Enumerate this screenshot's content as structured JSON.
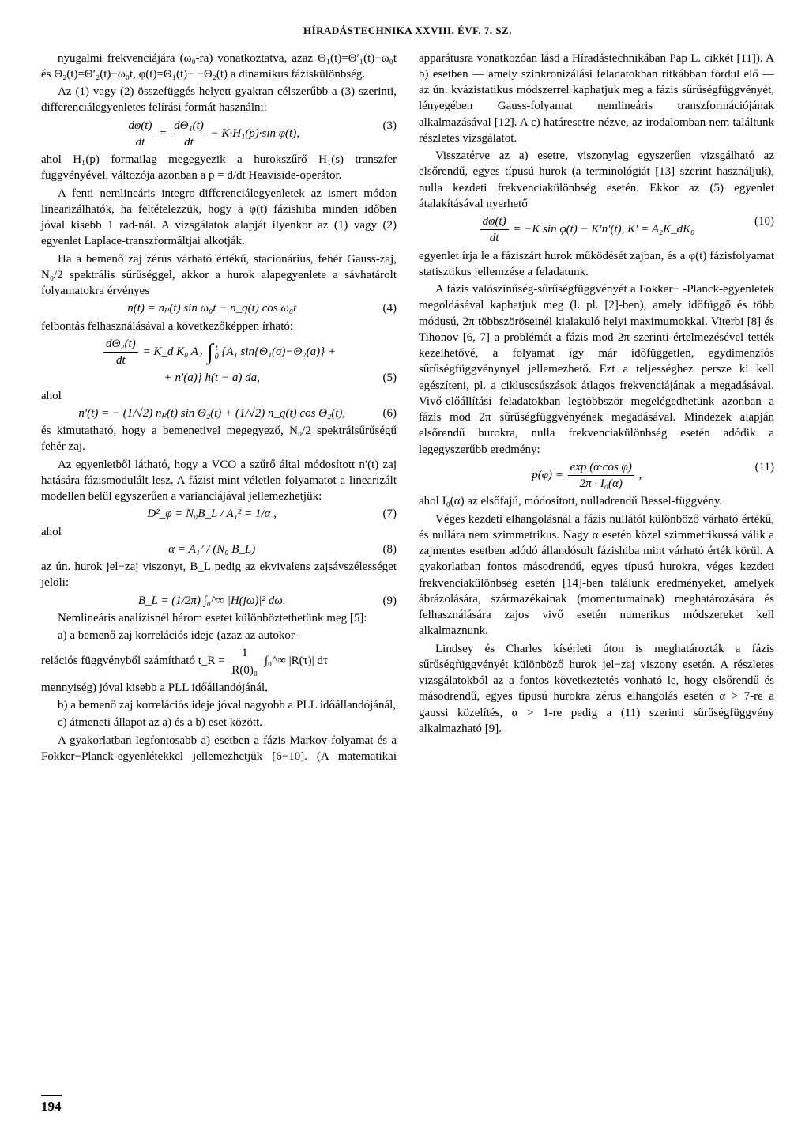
{
  "header": "HÍRADÁSTECHNIKA XXVIII. ÉVF. 7. SZ.",
  "page_number": "194",
  "left": {
    "p1": "nyugalmi frekvenciájára (ω₀-ra) vonatkoztatva, azaz Θ₁(t)=Θ′₁(t)−ω₀t és Θ₂(t)=Θ′₂(t)−ω₀t, φ(t)=Θ₁(t)− −Θ₂(t) a dinamikus fáziskülönbség.",
    "p2": "Az (1) vagy (2) összefüggés helyett gyakran célszerűbb a (3) szerinti, differenciálegyenletes felírási formát használni:",
    "eq3_lhs_top": "dφ(t)",
    "eq3_lhs_bot": "dt",
    "eq3_mid_top": "dΘ₁(t)",
    "eq3_mid_bot": "dt",
    "eq3_rest": " − K·H₁(p)·sin φ(t),",
    "eq3_num": "(3)",
    "p3": "ahol H₁(p) formailag megegyezik a hurokszűrő H₁(s) transzfer függvényével, változója azonban a p = d/dt Heaviside-operátor.",
    "p4": "A fenti nemlineáris integro-differenciálegyenletek az ismert módon linearizálhatók, ha feltételezzük, hogy a φ(t) fázishiba minden időben jóval kisebb 1 rad-nál. A vizsgálatok alapját ilyenkor az (1) vagy (2) egyenlet Laplace-transzformáltjai alkotják.",
    "p5": "Ha a bemenő zaj zérus várható értékű, stacionárius, fehér Gauss-zaj, N₀/2 spektrális sűrűséggel, akkor a hurok alapegyenlete a sávhatárolt folyamatokra érvényes",
    "eq4": "n(t) = nₚ(t) sin ω₀t − n_q(t) cos ω₀t",
    "eq4_num": "(4)",
    "p6": "felbontás felhasználásával a következőképpen írható:",
    "eq5_lhs_top": "dΘ₂(t)",
    "eq5_lhs_bot": "dt",
    "eq5_rhs1": " = K_d K₀ A₂ ",
    "eq5_rhs2": " {A₁ sin{Θ₁(σ)−Θ₂(a)} +",
    "eq5_line2": "+ n′(a)} h(t − a) da,",
    "eq5_num": "(5)",
    "p7": "ahol",
    "eq6": "n′(t) = − (1/√2) nₚ(t) sin Θ₂(t) + (1/√2) n_q(t) cos Θ₂(t),",
    "eq6_num": "(6)",
    "p8": "és kimutatható, hogy a bemenetivel megegyező, N₀/2 spektrálsűrűségű fehér zaj.",
    "p9": "Az egyenletből látható, hogy a VCO a szűrő által módosított n′(t) zaj hatására fázismodulált lesz. A fázist mint véletlen folyamatot a linearizált modellen belül egyszerűen a varianciájával jellemezhetjük:",
    "eq7_full": "D²_φ = N₀B_L / A₁² = 1/α ,",
    "eq7_num": "(7)",
    "p10": "ahol",
    "eq8_full": "α = A₁² / (N₀ B_L)",
    "eq8_num": "(8)",
    "p11": "az ún. hurok jel−zaj viszonyt, B_L pedig az ekvivalens zajsávszélességet jelöli:",
    "eq9_full": "B_L = (1/2π) ∫₀^∞ |H(jω)|² dω.",
    "eq9_num": "(9)",
    "p12": "Nemlineáris analízisnél három esetet különböztethetünk meg [5]:",
    "p13a": "a) a bemenő zaj korrelációs ideje (azaz az autokor-",
    "p13b_pre": "relációs függvényből számítható t_R = ",
    "p13b_frac_top": "1",
    "p13b_frac_bot": "R(0)₀",
    "p13b_int": " ∫₀^∞ |R(τ)| dτ",
    "p14": "mennyiség) jóval kisebb a PLL időállandójánál,"
  },
  "right": {
    "p1": "b) a bemenő zaj korrelációs ideje jóval nagyobb a PLL időállandójánál,",
    "p2": "c) átmeneti állapot az a) és a b) eset között.",
    "p3": "A gyakorlatban legfontosabb a) esetben a fázis Markov-folyamat és a Fokker−Planck-egyenlétekkel jellemezhetjük [6−10]. (A matematikai apparátusra vonatkozóan lásd a Híradástechnikában Pap L. cikkét [11]). A b) esetben — amely szinkronizálási feladatokban ritkábban fordul elő — az ún. kvázistatikus módszerrel kaphatjuk meg a fázis sűrűségfüggvényét, lényegében Gauss-folyamat nemlineáris transzformációjának alkalmazásával [12]. A c) határesetre nézve, az irodalomban nem találtunk részletes vizsgálatot.",
    "p4": "Visszatérve az a) esetre, viszonylag egyszerűen vizsgálható az elsőrendű, egyes típusú hurok (a terminológiát [13] szerint használjuk), nulla kezdeti frekvenciakülönbség esetén. Ekkor az (5) egyenlet átalakításával nyerhető",
    "eq10_lhs_top": "dφ(t)",
    "eq10_lhs_bot": "dt",
    "eq10_rhs": " = −K sin φ(t) − K′n′(t),    K′ = A₂K_dK₀",
    "eq10_num": "(10)",
    "p5": "egyenlet írja le a fáziszárt hurok működését zajban, és a φ(t) fázisfolyamat statisztikus jellemzése a feladatunk.",
    "p6": "A fázis valószínűség-sűrűségfüggvényét a Fokker− -Planck-egyenletek megoldásával kaphatjuk meg (l. pl. [2]-ben), amely időfüggő és több módusú, 2π többszöröseinél kialakuló helyi maximumokkal. Viterbi [8] és Tihonov [6, 7] a problémát a fázis mod 2π szerinti értelmezésével tették kezelhetővé, a folyamat így már időfüggetlen, egydimenziós sűrűségfüggvénynyel jellemezhető. Ezt a teljességhez persze ki kell egészíteni, pl. a cikluscsúszások átlagos frekvenciájának a megadásával. Vivő-előállítási feladatokban legtöbbször megelégedhetünk azonban a fázis mod 2π sűrűségfüggvényének megadásával. Mindezek alapján elsőrendű hurokra, nulla frekvenciakülönbség esetén adódik a legegyszerűbb eredmény:",
    "eq11_top": "exp (α·cos φ)",
    "eq11_bot": "2π · I₀(α)",
    "eq11_pre": "p(φ) = ",
    "eq11_post": " ,",
    "eq11_num": "(11)",
    "p7": "ahol I₀(α) az elsőfajú, módosított, nulladrendű Bessel-függvény.",
    "p8": "Véges kezdeti elhangolásnál a fázis nullától különböző várható értékű, és nullára nem szimmetrikus. Nagy α esetén közel szimmetrikussá válik a zajmentes esetben adódó állandósult fázishiba mint várható érték körül. A gyakorlatban fontos másodrendű, egyes típusú hurokra, véges kezdeti frekvenciakülönbség esetén [14]-ben találunk eredményeket, amelyek ábrázolására, származékainak (momentumainak) meghatározására és felhasználására zajos vivő esetén numerikus módszereket kell alkalmaznunk.",
    "p9": "Lindsey és Charles kísérleti úton is meghatározták a fázis sűrűségfüggvényét különböző hurok jel−zaj viszony esetén. A részletes vizsgálatokból az a fontos következtetés vonható le, hogy elsőrendű és másodrendű, egyes típusú hurokra zérus elhangolás esetén α > 7-re a gaussi közelítés, α > 1-re pedig a (11) szerinti sűrűségfüggvény alkalmazható [9]."
  }
}
